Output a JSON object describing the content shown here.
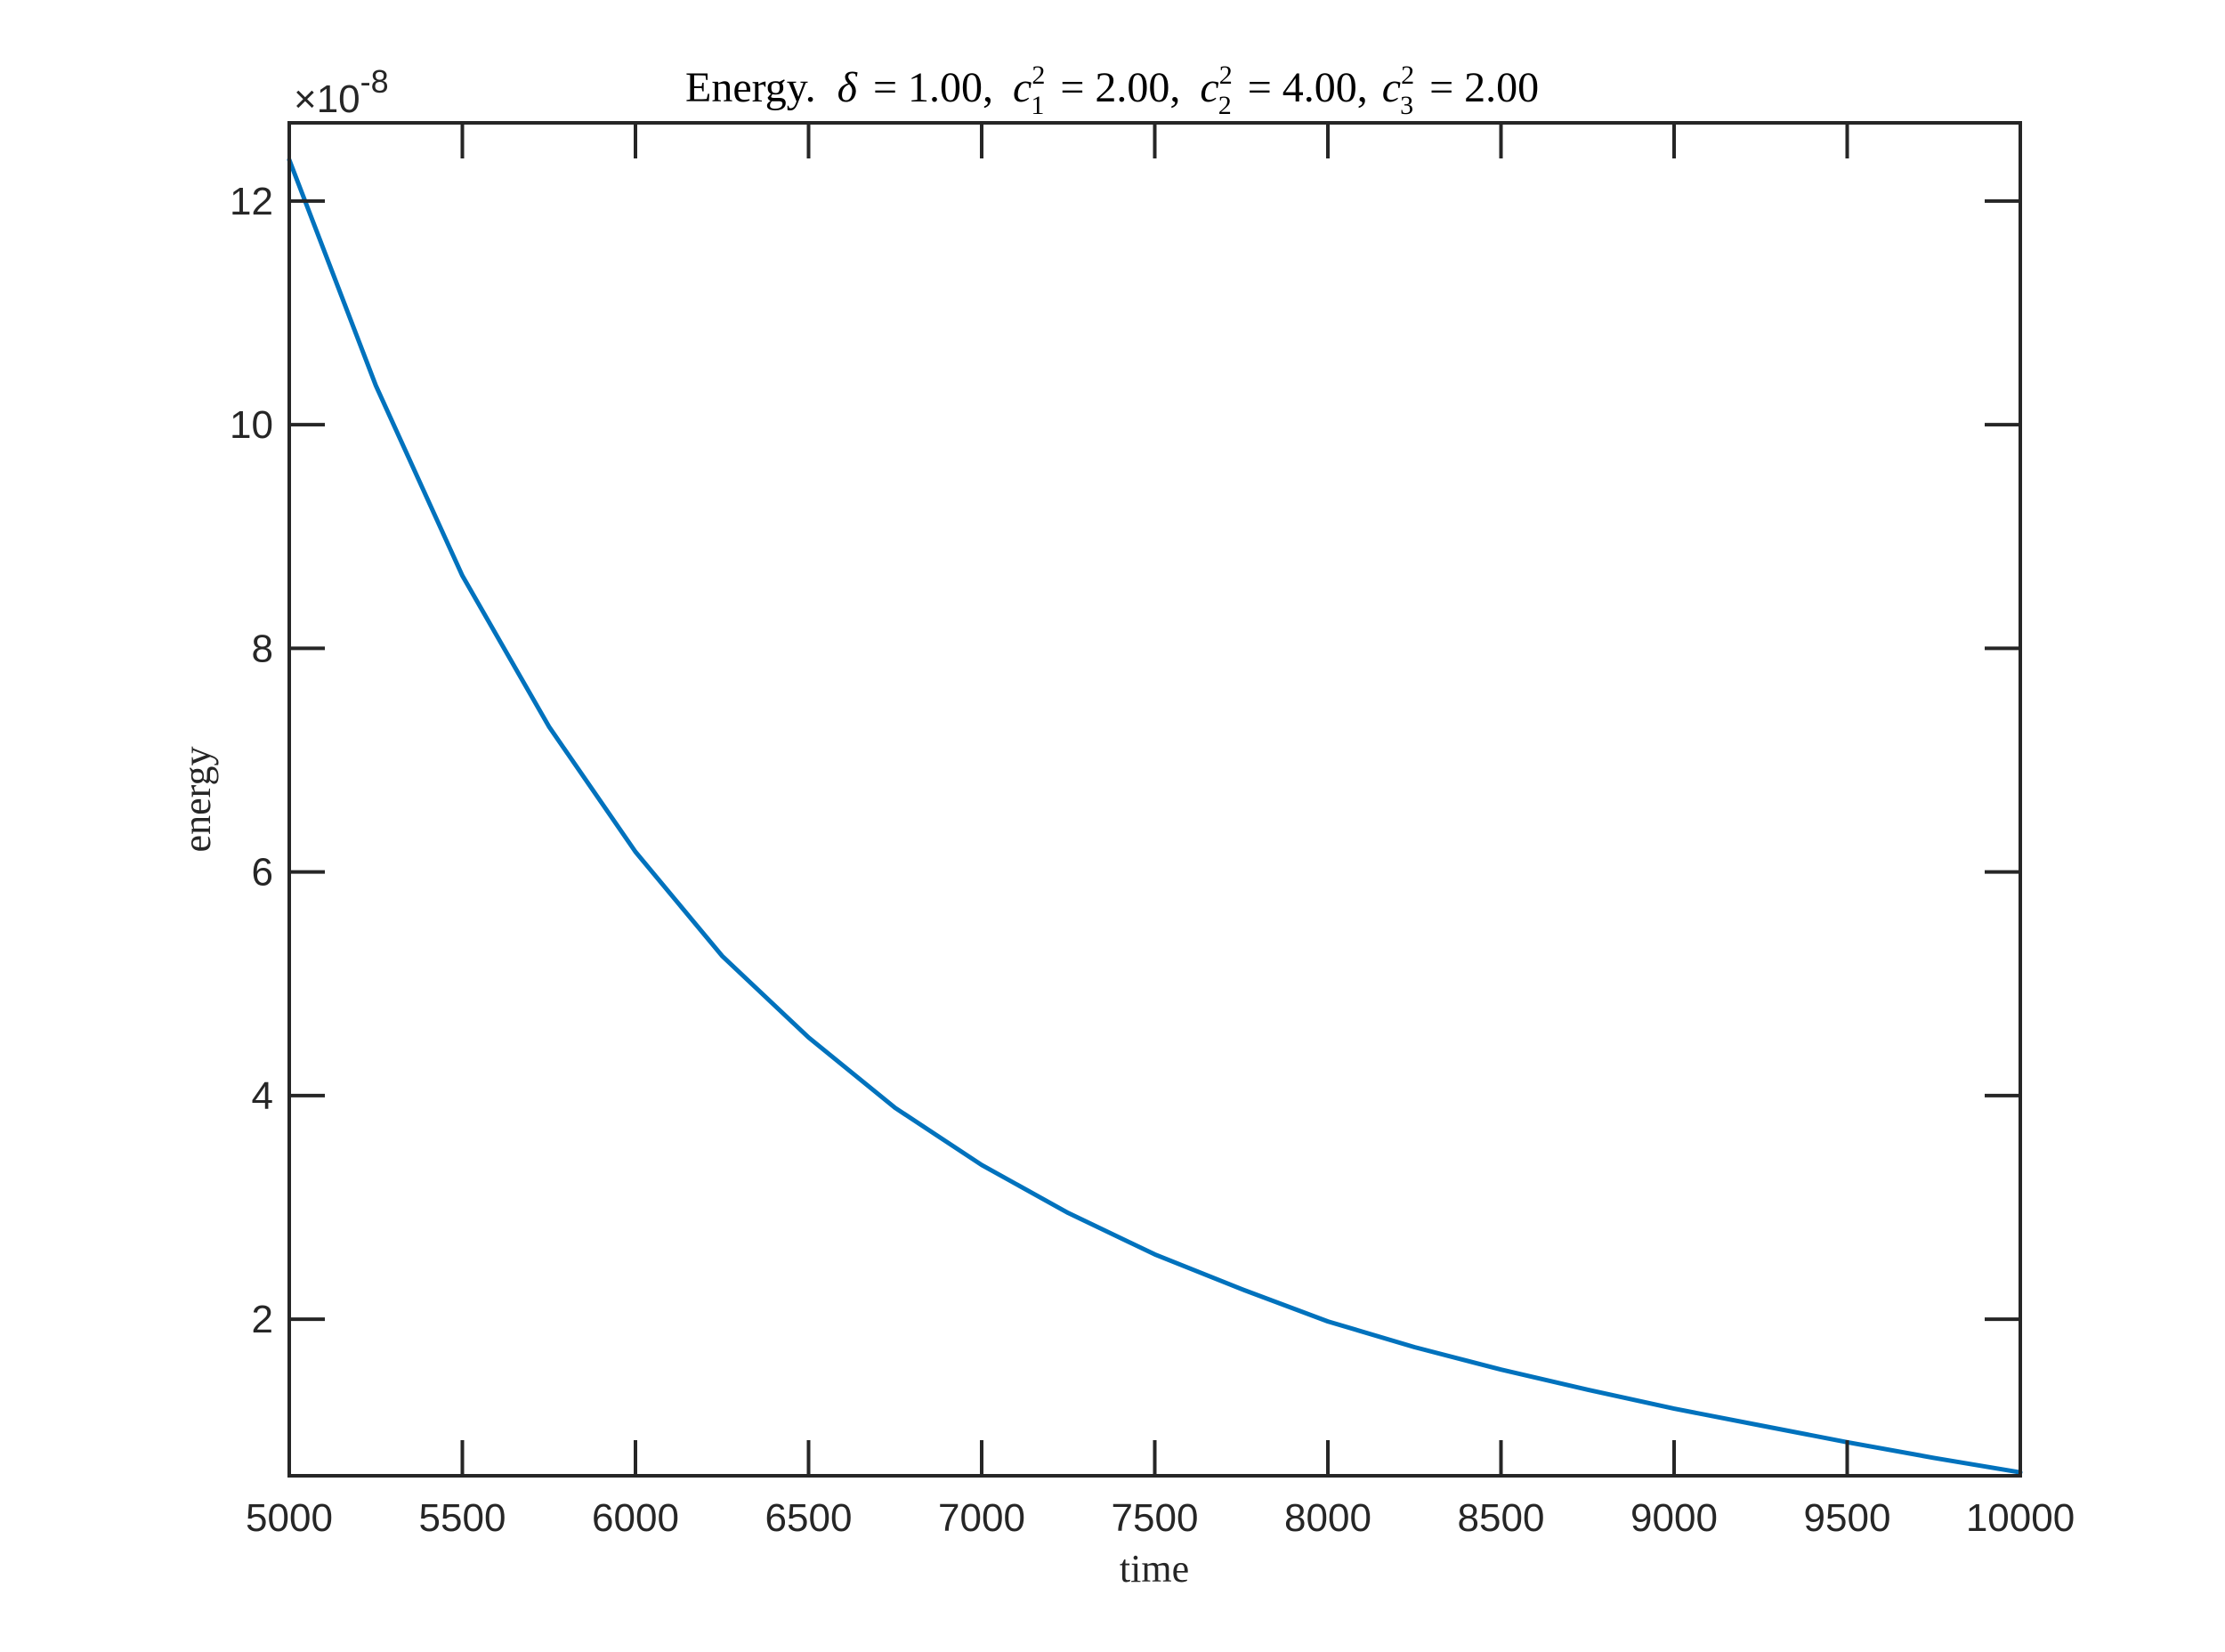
{
  "chart_data": {
    "type": "line",
    "title": {
      "prefix": "Energy.",
      "delta_symbol": "δ",
      "delta_value": "= 1.00,",
      "c_symbol": "c",
      "c1_sub": "1",
      "c1_value": "= 2.00,",
      "c2_sub": "2",
      "c2_value": "= 4.00,",
      "c3_sub": "3",
      "c3_value": "= 2.00",
      "sup": "2"
    },
    "xlabel": "time",
    "ylabel": "energy",
    "y_exponent": {
      "times": "×10",
      "power": "-8"
    },
    "xlim": [
      5000,
      10000
    ],
    "ylim": [
      0.6,
      12.7
    ],
    "x_ticks": [
      5000,
      5500,
      6000,
      6500,
      7000,
      7500,
      8000,
      8500,
      9000,
      9500,
      10000
    ],
    "y_ticks": [
      2,
      4,
      6,
      8,
      10,
      12
    ],
    "grid": false,
    "series": [
      {
        "color": "#0072BD",
        "x": [
          5000,
          5250,
          5500,
          5750,
          6000,
          6250,
          6500,
          6750,
          7000,
          7250,
          7500,
          7750,
          8000,
          8250,
          8500,
          8750,
          9000,
          9250,
          9500,
          9750,
          10000
        ],
        "y": [
          12.37,
          10.35,
          8.65,
          7.3,
          6.18,
          5.25,
          4.52,
          3.89,
          3.38,
          2.95,
          2.58,
          2.27,
          1.98,
          1.75,
          1.55,
          1.37,
          1.2,
          1.05,
          0.9,
          0.76,
          0.63
        ]
      }
    ]
  }
}
